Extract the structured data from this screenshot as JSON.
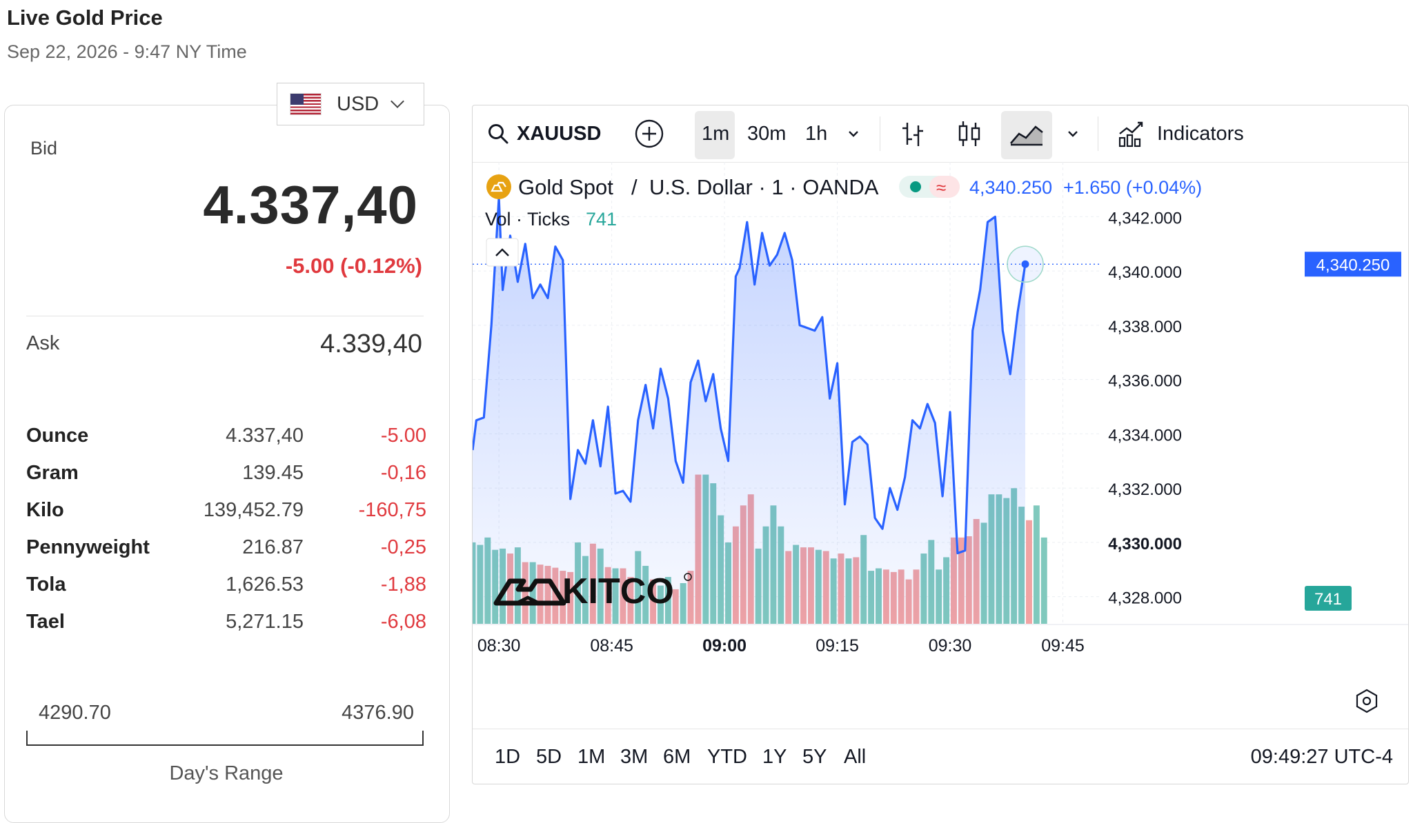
{
  "header": {
    "title": "Live Gold Price",
    "subtitle": "Sep 22, 2026 - 9:47 NY Time"
  },
  "currency": {
    "selected": "USD"
  },
  "bid": {
    "label": "Bid",
    "value": "4.337,40",
    "change": "-5.00 (-0.12%)"
  },
  "ask": {
    "label": "Ask",
    "value": "4.339,40"
  },
  "units": [
    {
      "name": "Ounce",
      "price": "4.337,40",
      "change": "-5.00"
    },
    {
      "name": "Gram",
      "price": "139.45",
      "change": "-0,16"
    },
    {
      "name": "Kilo",
      "price": "139,452.79",
      "change": "-160,75"
    },
    {
      "name": "Pennyweight",
      "price": "216.87",
      "change": "-0,25"
    },
    {
      "name": "Tola",
      "price": "1,626.53",
      "change": "-1,88"
    },
    {
      "name": "Tael",
      "price": "5,271.15",
      "change": "-6,08"
    }
  ],
  "day_range": {
    "low": "4290.70",
    "high": "4376.90",
    "label": "Day's Range"
  },
  "toolbar": {
    "symbol": "XAUUSD",
    "intervals": [
      "1m",
      "30m",
      "1h"
    ],
    "active_interval": "1m",
    "indicators_label": "Indicators"
  },
  "legend": {
    "symbol_name": "Gold Spot",
    "separator": "/",
    "quote_name": "U.S. Dollar · 1 · OANDA",
    "last": "4,340.250",
    "change": "+1.650 (+0.04%)",
    "vol_label": "Vol · Ticks",
    "vol_value": "741"
  },
  "watermark": "KITCO",
  "bottom": {
    "ranges": [
      "1D",
      "5D",
      "1M",
      "3M",
      "6M",
      "YTD",
      "1Y",
      "5Y",
      "All"
    ],
    "clock": "09:49:27 UTC-4"
  },
  "colors": {
    "line": "#2962ff",
    "vol_up": "#80c9bd",
    "vol_down": "#f2a3a3",
    "price_tag": "#2962ff",
    "vol_tag": "#26a69a",
    "negative": "#e0393e"
  },
  "chart_data": {
    "type": "line",
    "ylim": [
      4327.0,
      4343.0
    ],
    "y_ticks": [
      "4,342.000",
      "4,340.000",
      "4,338.000",
      "4,336.000",
      "4,334.000",
      "4,332.000",
      "4,330.000",
      "4,328.000"
    ],
    "y_tick_values": [
      4342,
      4340,
      4338,
      4336,
      4334,
      4332,
      4330,
      4328
    ],
    "x_ticks": [
      "08:30",
      "08:45",
      "09:00",
      "09:15",
      "09:30",
      "09:45"
    ],
    "x_tick_minutes": [
      0,
      15,
      30,
      45,
      60,
      75
    ],
    "x_bold": "09:00",
    "x_range_minutes": [
      -3.5,
      80
    ],
    "last_price": "4,340.250",
    "last_volume": "741",
    "price": [
      [
        -3.5,
        4333.4
      ],
      [
        -3.0,
        4334.5
      ],
      [
        -2.0,
        4334.6
      ],
      [
        -1.0,
        4338.0
      ],
      [
        0.0,
        4342.7
      ],
      [
        0.5,
        4339.3
      ],
      [
        1.5,
        4341.3
      ],
      [
        2.5,
        4339.6
      ],
      [
        3.5,
        4341.0
      ],
      [
        4.5,
        4339.0
      ],
      [
        5.5,
        4339.5
      ],
      [
        6.5,
        4339.0
      ],
      [
        7.5,
        4340.9
      ],
      [
        8.5,
        4340.4
      ],
      [
        9.5,
        4331.6
      ],
      [
        10.5,
        4333.4
      ],
      [
        11.5,
        4332.9
      ],
      [
        12.5,
        4334.5
      ],
      [
        13.5,
        4332.8
      ],
      [
        14.5,
        4335.0
      ],
      [
        15.5,
        4331.8
      ],
      [
        16.5,
        4331.9
      ],
      [
        17.5,
        4331.5
      ],
      [
        18.5,
        4334.5
      ],
      [
        19.5,
        4335.8
      ],
      [
        20.5,
        4334.2
      ],
      [
        21.5,
        4336.4
      ],
      [
        22.5,
        4335.3
      ],
      [
        23.5,
        4333.0
      ],
      [
        24.5,
        4332.2
      ],
      [
        25.5,
        4335.9
      ],
      [
        26.5,
        4336.7
      ],
      [
        27.5,
        4335.2
      ],
      [
        28.5,
        4336.2
      ],
      [
        29.5,
        4334.2
      ],
      [
        30.5,
        4333.0
      ],
      [
        31.5,
        4339.8
      ],
      [
        32.0,
        4340.1
      ],
      [
        33.0,
        4341.8
      ],
      [
        34.0,
        4339.5
      ],
      [
        35.0,
        4341.4
      ],
      [
        36.0,
        4340.2
      ],
      [
        37.0,
        4340.6
      ],
      [
        38.0,
        4341.4
      ],
      [
        39.0,
        4340.4
      ],
      [
        40.0,
        4338.0
      ],
      [
        41.0,
        4337.9
      ],
      [
        42.0,
        4337.8
      ],
      [
        43.0,
        4338.3
      ],
      [
        44.0,
        4335.3
      ],
      [
        45.0,
        4336.6
      ],
      [
        46.0,
        4331.4
      ],
      [
        47.0,
        4333.7
      ],
      [
        48.0,
        4333.9
      ],
      [
        49.0,
        4333.6
      ],
      [
        50.0,
        4330.9
      ],
      [
        51.0,
        4330.5
      ],
      [
        52.0,
        4332.0
      ],
      [
        53.0,
        4331.2
      ],
      [
        54.0,
        4332.4
      ],
      [
        55.0,
        4334.5
      ],
      [
        56.0,
        4334.2
      ],
      [
        57.0,
        4335.1
      ],
      [
        58.0,
        4334.4
      ],
      [
        59.0,
        4331.7
      ],
      [
        60.0,
        4334.8
      ],
      [
        61.0,
        4329.6
      ],
      [
        62.0,
        4329.7
      ],
      [
        63.0,
        4337.8
      ],
      [
        64.0,
        4339.3
      ],
      [
        65.0,
        4341.8
      ],
      [
        66.0,
        4342.0
      ],
      [
        67.0,
        4337.8
      ],
      [
        68.0,
        4336.2
      ],
      [
        69.0,
        4338.5
      ],
      [
        70.0,
        4340.25
      ]
    ],
    "volume_range": [
      0,
      1230
    ],
    "volume": [
      [
        -3.5,
        660,
        "up"
      ],
      [
        -2.5,
        640,
        "up"
      ],
      [
        -1.5,
        700,
        "up"
      ],
      [
        -0.5,
        600,
        "up"
      ],
      [
        0.5,
        610,
        "up"
      ],
      [
        1.5,
        570,
        "down"
      ],
      [
        2.5,
        620,
        "up"
      ],
      [
        3.5,
        500,
        "down"
      ],
      [
        4.5,
        500,
        "up"
      ],
      [
        5.5,
        480,
        "down"
      ],
      [
        6.5,
        470,
        "down"
      ],
      [
        7.5,
        455,
        "down"
      ],
      [
        8.5,
        430,
        "down"
      ],
      [
        9.5,
        420,
        "down"
      ],
      [
        10.5,
        660,
        "up"
      ],
      [
        11.5,
        550,
        "up"
      ],
      [
        12.5,
        650,
        "down"
      ],
      [
        13.5,
        610,
        "up"
      ],
      [
        14.5,
        460,
        "down"
      ],
      [
        15.5,
        450,
        "up"
      ],
      [
        16.5,
        450,
        "down"
      ],
      [
        17.5,
        380,
        "down"
      ],
      [
        18.5,
        590,
        "up"
      ],
      [
        19.5,
        470,
        "up"
      ],
      [
        20.5,
        360,
        "down"
      ],
      [
        21.5,
        310,
        "up"
      ],
      [
        22.5,
        380,
        "up"
      ],
      [
        23.5,
        280,
        "down"
      ],
      [
        24.5,
        330,
        "up"
      ],
      [
        25.5,
        430,
        "down"
      ],
      [
        26.5,
        1210,
        "down"
      ],
      [
        27.5,
        1210,
        "up"
      ],
      [
        28.5,
        1140,
        "up"
      ],
      [
        29.5,
        880,
        "up"
      ],
      [
        30.5,
        660,
        "up"
      ],
      [
        31.5,
        790,
        "down"
      ],
      [
        32.5,
        960,
        "down"
      ],
      [
        33.5,
        1050,
        "down"
      ],
      [
        34.5,
        610,
        "up"
      ],
      [
        35.5,
        790,
        "up"
      ],
      [
        36.5,
        960,
        "up"
      ],
      [
        37.5,
        790,
        "up"
      ],
      [
        38.5,
        590,
        "down"
      ],
      [
        39.5,
        640,
        "up"
      ],
      [
        40.5,
        620,
        "down"
      ],
      [
        41.5,
        620,
        "down"
      ],
      [
        42.5,
        600,
        "up"
      ],
      [
        43.5,
        590,
        "down"
      ],
      [
        44.5,
        530,
        "up"
      ],
      [
        45.5,
        570,
        "down"
      ],
      [
        46.5,
        530,
        "up"
      ],
      [
        47.5,
        540,
        "down"
      ],
      [
        48.5,
        720,
        "up"
      ],
      [
        49.5,
        430,
        "up"
      ],
      [
        50.5,
        450,
        "up"
      ],
      [
        51.5,
        440,
        "down"
      ],
      [
        52.5,
        420,
        "down"
      ],
      [
        53.5,
        440,
        "down"
      ],
      [
        54.5,
        360,
        "down"
      ],
      [
        55.5,
        440,
        "down"
      ],
      [
        56.5,
        570,
        "up"
      ],
      [
        57.5,
        680,
        "up"
      ],
      [
        58.5,
        440,
        "up"
      ],
      [
        59.5,
        540,
        "up"
      ],
      [
        60.5,
        700,
        "down"
      ],
      [
        61.5,
        700,
        "down"
      ],
      [
        62.5,
        710,
        "down"
      ],
      [
        63.5,
        850,
        "down"
      ],
      [
        64.5,
        820,
        "up"
      ],
      [
        65.5,
        1050,
        "up"
      ],
      [
        66.5,
        1050,
        "up"
      ],
      [
        67.5,
        1020,
        "up"
      ],
      [
        68.5,
        1100,
        "up"
      ],
      [
        69.5,
        950,
        "up"
      ],
      [
        70.5,
        840,
        "down"
      ],
      [
        71.5,
        960,
        "up"
      ],
      [
        72.5,
        700,
        "up"
      ]
    ]
  }
}
